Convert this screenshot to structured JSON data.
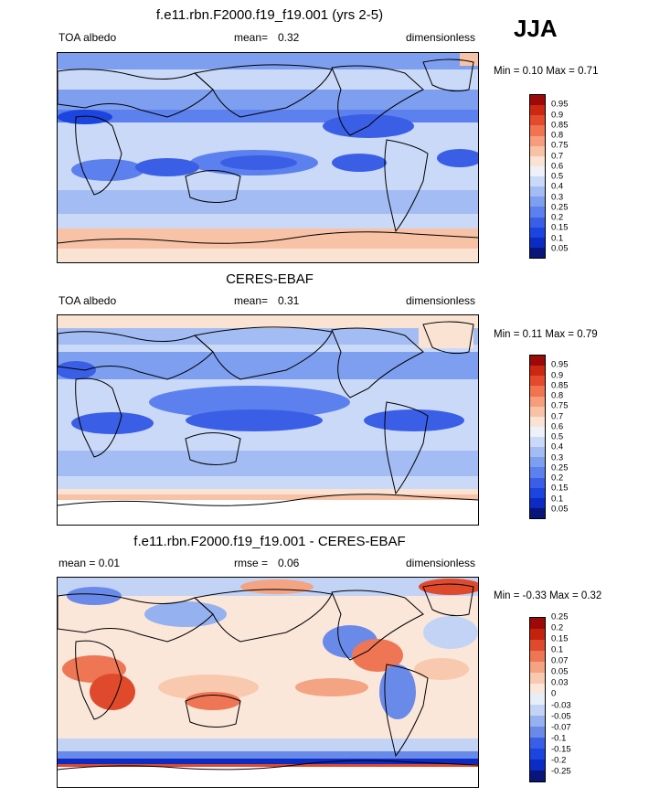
{
  "season": "JJA",
  "colors": {
    "seq": [
      "#08167a",
      "#0b2bc4",
      "#1c44de",
      "#3a5fe6",
      "#5c80ed",
      "#7e9ff0",
      "#a3bdf4",
      "#cad9f7",
      "#eef1f8",
      "#fbe3d4",
      "#f8c2a6",
      "#f59d7c",
      "#f2734f",
      "#e44a2c",
      "#cc2712",
      "#9b0a08"
    ],
    "diff": [
      "#08167a",
      "#0b2bc4",
      "#1c44de",
      "#3a5fe6",
      "#6a8ae9",
      "#95b1f0",
      "#c3d3f6",
      "#e8eef8",
      "#fbe7da",
      "#f8c9ae",
      "#f4a383",
      "#ee7654",
      "#e04a2c",
      "#c4220f",
      "#9b0a08"
    ]
  },
  "panels": [
    {
      "title": "f.e11.rbn.F2000.f19_f19.001 (yrs 2-5)",
      "left": "TOA albedo",
      "center_label": "mean=",
      "center_value": "0.32",
      "right": "dimensionless",
      "min_label": "Min =",
      "min": "0.10",
      "max_label": "Max =",
      "max": "0.71",
      "scale": "seq",
      "levels": [
        "0.05",
        "0.1",
        "0.15",
        "0.2",
        "0.25",
        "0.3",
        "0.4",
        "0.5",
        "0.6",
        "0.7",
        "0.75",
        "0.8",
        "0.85",
        "0.9",
        "0.95"
      ]
    },
    {
      "title": "CERES-EBAF",
      "left": "TOA albedo",
      "center_label": "mean=",
      "center_value": "0.31",
      "right": "dimensionless",
      "min_label": "Min =",
      "min": "0.11",
      "max_label": "Max =",
      "max": "0.79",
      "scale": "seq",
      "levels": [
        "0.05",
        "0.1",
        "0.15",
        "0.2",
        "0.25",
        "0.3",
        "0.4",
        "0.5",
        "0.6",
        "0.7",
        "0.75",
        "0.8",
        "0.85",
        "0.9",
        "0.95"
      ]
    },
    {
      "title": "f.e11.rbn.F2000.f19_f19.001 - CERES-EBAF",
      "left": "mean =   0.01",
      "center_label": "rmse =",
      "center_value": "0.06",
      "right": "dimensionless",
      "min_label": "Min =",
      "min": "-0.33",
      "max_label": "Max =",
      "max": "0.32",
      "scale": "diff",
      "levels": [
        "-0.25",
        "-0.2",
        "-0.15",
        "-0.1",
        "-0.07",
        "-0.05",
        "-0.03",
        "0",
        "0.03",
        "0.05",
        "0.07",
        "0.1",
        "0.15",
        "0.2",
        "0.25"
      ]
    }
  ],
  "chart_data": [
    {
      "type": "heatmap",
      "title": "f.e11.rbn.F2000.f19_f19.001 (yrs 2-5)",
      "variable": "TOA albedo",
      "units": "dimensionless",
      "mean": 0.32,
      "min": 0.1,
      "max": 0.71,
      "contour_levels": [
        0.05,
        0.1,
        0.15,
        0.2,
        0.25,
        0.3,
        0.4,
        0.5,
        0.6,
        0.7,
        0.75,
        0.8,
        0.85,
        0.9,
        0.95
      ]
    },
    {
      "type": "heatmap",
      "title": "CERES-EBAF",
      "variable": "TOA albedo",
      "units": "dimensionless",
      "mean": 0.31,
      "min": 0.11,
      "max": 0.79,
      "contour_levels": [
        0.05,
        0.1,
        0.15,
        0.2,
        0.25,
        0.3,
        0.4,
        0.5,
        0.6,
        0.7,
        0.75,
        0.8,
        0.85,
        0.9,
        0.95
      ]
    },
    {
      "type": "heatmap",
      "title": "f.e11.rbn.F2000.f19_f19.001 - CERES-EBAF",
      "units": "dimensionless",
      "mean": 0.01,
      "rmse": 0.06,
      "min": -0.33,
      "max": 0.32,
      "contour_levels": [
        -0.25,
        -0.2,
        -0.15,
        -0.1,
        -0.07,
        -0.05,
        -0.03,
        0,
        0.03,
        0.05,
        0.07,
        0.1,
        0.15,
        0.2,
        0.25
      ]
    }
  ]
}
